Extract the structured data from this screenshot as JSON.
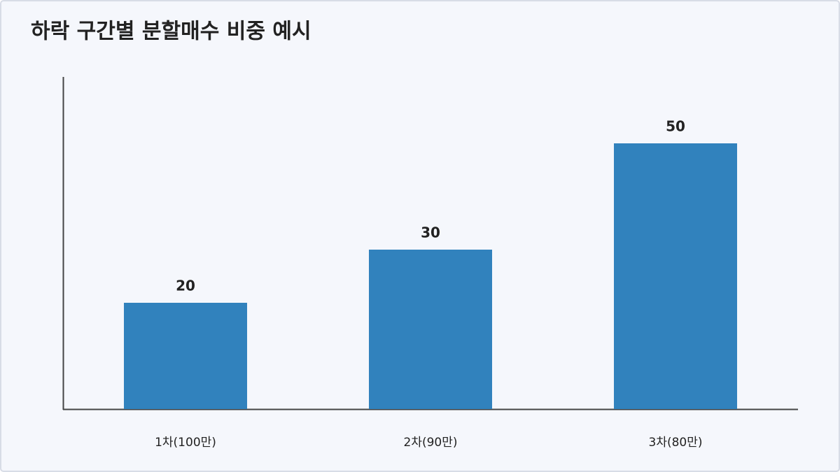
{
  "chart_data": {
    "type": "bar",
    "title": "하락 구간별 분할매수 비중 예시",
    "categories": [
      "1차(100만)",
      "2차(90만)",
      "3차(80만)"
    ],
    "values": [
      20,
      30,
      50
    ],
    "color": "#3182bd",
    "ylim": [
      0,
      62.5
    ]
  }
}
